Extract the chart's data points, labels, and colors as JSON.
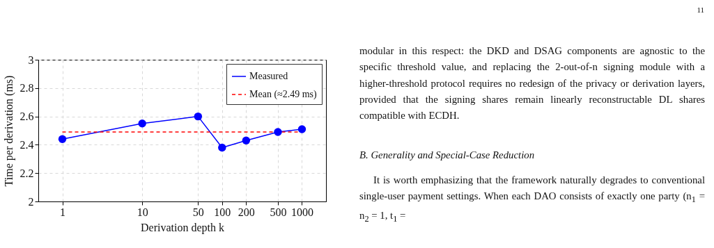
{
  "chart_data": {
    "type": "line",
    "xlabel": "Derivation depth k",
    "ylabel": "Time per derivation (ms)",
    "x": [
      1,
      10,
      50,
      100,
      200,
      500,
      1000
    ],
    "series": [
      {
        "name": "Measured",
        "color": "#0000ff",
        "marker": "circle",
        "line_style": "solid",
        "values": [
          2.44,
          2.55,
          2.6,
          2.38,
          2.43,
          2.49,
          2.51
        ]
      },
      {
        "name": "Mean (≈2.49 ms)",
        "color": "#ff0000",
        "marker": "none",
        "line_style": "dashed",
        "x": [
          1,
          1000
        ],
        "values": [
          2.49,
          2.49
        ]
      }
    ],
    "log": "x",
    "xlim": [
      0.5,
      2000
    ],
    "xticks": [
      1,
      10,
      50,
      100,
      200,
      500,
      1000
    ],
    "ylim": [
      2,
      3
    ],
    "yticks": [
      2,
      2.2,
      2.4,
      2.6,
      2.8,
      3
    ],
    "grid": true,
    "legend": "top right",
    "annotations": [
      "11",
      "modular in this respect: the DKD and DSAG components are agnostic to the specific threshold value, and replacing the 2-out-of-n signing module with a higher-threshold protocol requires no redesign of the privacy or derivation layers, provided that the signing shares remain linearly reconstructable DL shares compatible with ECDH.",
      "B. Generality and Special-Case Reduction",
      "It is worth emphasizing that the framework naturally degrades to conventional single-user payment settings. When each DAO consists of exactly one party (n$_{1}$ = n$_{2}$ = 1, t$_{1}$ ="
    ]
  }
}
